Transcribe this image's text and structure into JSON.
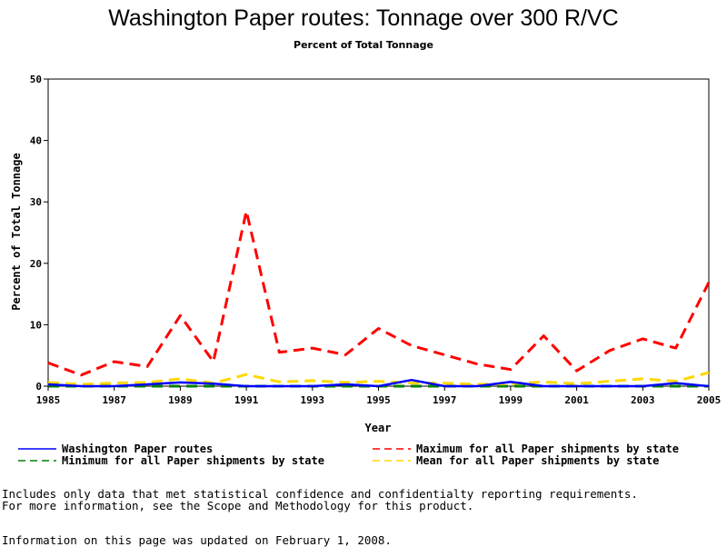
{
  "chart_data": {
    "type": "line",
    "title": "Washington Paper routes: Tonnage over 300 R/VC",
    "subtitle": "Percent of Total Tonnage",
    "xlabel": "Year",
    "ylabel": "Percent of Total Tonnage",
    "xlim": [
      1985,
      2005
    ],
    "ylim": [
      0,
      50
    ],
    "x_ticks": [
      "1985",
      "1987",
      "1989",
      "1991",
      "1993",
      "1995",
      "1997",
      "1999",
      "2001",
      "2003",
      "2005"
    ],
    "y_ticks": [
      "0",
      "10",
      "20",
      "30",
      "40",
      "50"
    ],
    "x": [
      1985,
      1986,
      1987,
      1988,
      1989,
      1990,
      1991,
      1992,
      1993,
      1994,
      1995,
      1996,
      1997,
      1998,
      1999,
      2000,
      2001,
      2002,
      2003,
      2004,
      2005
    ],
    "grid": false,
    "legend_position": "bottom",
    "series": [
      {
        "name": "Washington Paper routes",
        "color": "#0000ff",
        "dash": "solid",
        "values": [
          0.3,
          0.0,
          0.0,
          0.3,
          0.6,
          0.4,
          0.0,
          0.0,
          0.0,
          0.3,
          0.0,
          1.0,
          0.0,
          0.0,
          0.7,
          0.0,
          0.0,
          0.0,
          0.0,
          0.5,
          0.0
        ]
      },
      {
        "name": "Maximum for all Paper shipments by state",
        "color": "#ff0000",
        "dash": "dashed",
        "values": [
          3.8,
          1.8,
          4.0,
          3.2,
          11.5,
          4.0,
          28.5,
          5.5,
          6.2,
          5.1,
          9.4,
          6.6,
          5.1,
          3.6,
          2.7,
          8.2,
          2.5,
          5.8,
          7.7,
          6.2,
          16.9
        ]
      },
      {
        "name": "Minimum for all Paper shipments by state",
        "color": "#008000",
        "dash": "dashed",
        "values": [
          0,
          0,
          0,
          0,
          0,
          0,
          0,
          0,
          0,
          0,
          0,
          0,
          0,
          0,
          0,
          0,
          0,
          0,
          0,
          0,
          0
        ]
      },
      {
        "name": "Mean for all Paper shipments by state",
        "color": "#ffd700",
        "dash": "dashed",
        "values": [
          0.6,
          0.3,
          0.5,
          0.6,
          1.2,
          0.5,
          1.9,
          0.7,
          0.9,
          0.6,
          0.8,
          0.5,
          0.5,
          0.3,
          0.4,
          0.7,
          0.4,
          0.8,
          1.2,
          0.8,
          2.2
        ]
      }
    ]
  },
  "notes": {
    "line1": "Includes only data that met statistical confidence and confidentialty reporting requirements.",
    "line2": "For more information, see the Scope and Methodology for this product.",
    "updated": "Information on this page was updated on February 1, 2008."
  }
}
